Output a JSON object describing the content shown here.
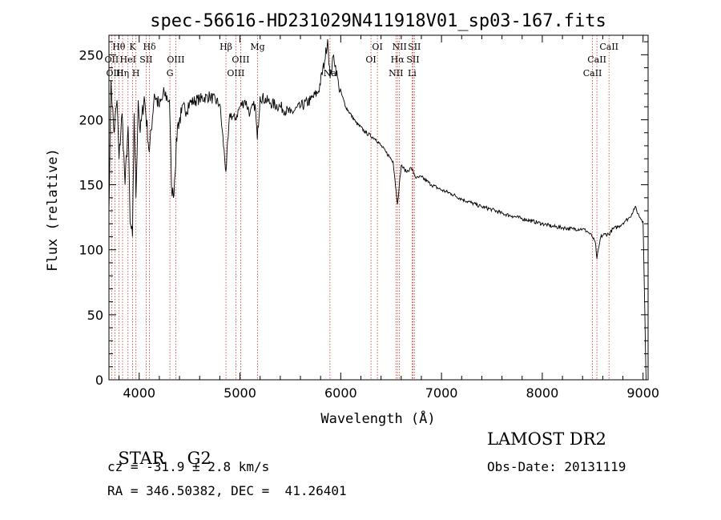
{
  "chart_data": {
    "type": "line",
    "title": "spec-56616-HD231029N411918V01_sp03-167.fits",
    "xlabel": "Wavelength (Å)",
    "ylabel": "Flux (relative)",
    "xlim": [
      3700,
      9050
    ],
    "ylim": [
      0,
      265
    ],
    "xticks": [
      "4000",
      "5000",
      "6000",
      "7000",
      "8000",
      "9000"
    ],
    "yticks": [
      "0",
      "50",
      "100",
      "150",
      "200",
      "250"
    ],
    "series": [
      {
        "x": [
          3700,
          3720,
          3750,
          3780,
          3800,
          3830,
          3860,
          3890,
          3910,
          3934,
          3950,
          3968,
          3990,
          4010,
          4050,
          4101,
          4150,
          4200,
          4250,
          4300,
          4320,
          4340,
          4380,
          4420,
          4500,
          4600,
          4700,
          4800,
          4861,
          4900,
          4950,
          5000,
          5050,
          5100,
          5150,
          5172,
          5200,
          5300,
          5400,
          5500,
          5600,
          5700,
          5780,
          5840,
          5870,
          5895,
          5930,
          5980,
          6050,
          6150,
          6250,
          6350,
          6450,
          6520,
          6563,
          6600,
          6650,
          6700,
          6750,
          6800,
          6900,
          7000,
          7100,
          7200,
          7300,
          7400,
          7500,
          7600,
          7700,
          7800,
          7900,
          8000,
          8100,
          8200,
          8300,
          8400,
          8450,
          8498,
          8530,
          8542,
          8580,
          8620,
          8662,
          8700,
          8760,
          8820,
          8870,
          8920,
          8960,
          9000,
          9030
        ],
        "y": [
          130,
          230,
          190,
          215,
          170,
          205,
          150,
          195,
          120,
          110,
          205,
          140,
          215,
          190,
          218,
          175,
          220,
          210,
          220,
          215,
          150,
          140,
          195,
          205,
          213,
          216,
          218,
          212,
          160,
          205,
          200,
          210,
          215,
          205,
          212,
          185,
          218,
          213,
          210,
          205,
          210,
          215,
          222,
          245,
          262,
          232,
          250,
          226,
          210,
          198,
          190,
          185,
          175,
          168,
          135,
          165,
          160,
          163,
          155,
          156,
          150,
          146,
          143,
          139,
          136,
          133,
          131,
          128,
          126,
          124,
          122,
          120,
          118,
          117,
          116,
          116,
          114,
          110,
          104,
          93,
          110,
          112,
          112,
          116,
          118,
          122,
          125,
          133,
          126,
          122,
          0
        ]
      }
    ],
    "lines": [
      {
        "label": "Hθ",
        "x": 3798,
        "row": 1
      },
      {
        "label": "OII",
        "x": 3727,
        "row": 2
      },
      {
        "label": "HeI",
        "x": 3889,
        "row": 2
      },
      {
        "label": "OIII",
        "x": 3760,
        "row": 3
      },
      {
        "label": "Hη",
        "x": 3835,
        "row": 3
      },
      {
        "label": "K",
        "x": 3934,
        "row": 1
      },
      {
        "label": "Hδ",
        "x": 4102,
        "row": 1
      },
      {
        "label": "SII",
        "x": 4069,
        "row": 2
      },
      {
        "label": "H",
        "x": 3968,
        "row": 3
      },
      {
        "label": "OIII",
        "x": 4363,
        "row": 2
      },
      {
        "label": "G",
        "x": 4305,
        "row": 3
      },
      {
        "label": "Hβ",
        "x": 4861,
        "row": 1
      },
      {
        "label": "OIII",
        "x": 5007,
        "row": 2
      },
      {
        "label": "OIII",
        "x": 4959,
        "row": 3
      },
      {
        "label": "Mg",
        "x": 5175,
        "row": 1
      },
      {
        "label": "Na",
        "x": 5893,
        "row": 3
      },
      {
        "label": "OI",
        "x": 6364,
        "row": 1
      },
      {
        "label": "OI",
        "x": 6300,
        "row": 2
      },
      {
        "label": "NII",
        "x": 6583,
        "row": 1
      },
      {
        "label": "Hα",
        "x": 6563,
        "row": 2
      },
      {
        "label": "NII",
        "x": 6548,
        "row": 3
      },
      {
        "label": "SII",
        "x": 6731,
        "row": 1
      },
      {
        "label": "SII",
        "x": 6717,
        "row": 2
      },
      {
        "label": "Li",
        "x": 6708,
        "row": 3
      },
      {
        "label": "CaII",
        "x": 8662,
        "row": 1
      },
      {
        "label": "CaII",
        "x": 8542,
        "row": 2
      },
      {
        "label": "CaII",
        "x": 8498,
        "row": 3
      }
    ],
    "grid": false
  },
  "info": {
    "class": "STAR",
    "subclass": "G2",
    "cz": "cz = -31.9 ± 2.8 km/s",
    "coords": "RA = 346.50382, DEC =  41.26401",
    "survey": "LAMOST DR2",
    "obsdate": "Obs-Date: 20131119"
  }
}
